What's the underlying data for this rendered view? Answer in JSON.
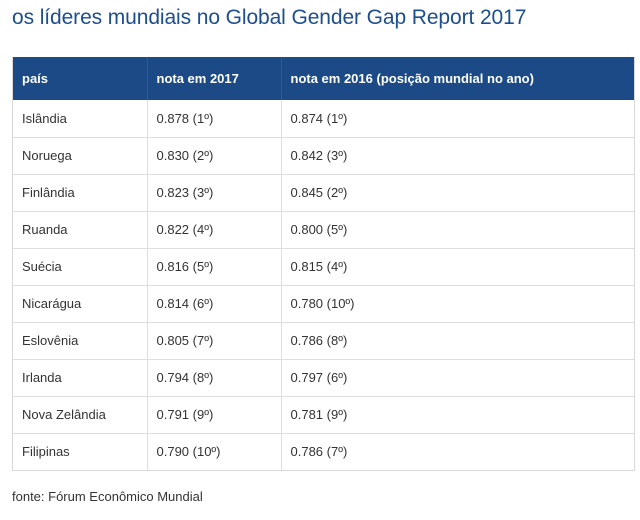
{
  "title": "os líderes mundiais no Global Gender Gap Report 2017",
  "table": {
    "headers": [
      "país",
      "nota em 2017",
      "nota em 2016 (posição mundial no ano)"
    ],
    "rows": [
      [
        "Islândia",
        "0.878 (1º)",
        "0.874 (1º)"
      ],
      [
        "Noruega",
        "0.830 (2º)",
        "0.842 (3º)"
      ],
      [
        "Finlândia",
        "0.823 (3º)",
        "0.845 (2º)"
      ],
      [
        "Ruanda",
        "0.822 (4º)",
        "0.800 (5º)"
      ],
      [
        "Suécia",
        "0.816 (5º)",
        "0.815 (4º)"
      ],
      [
        "Nicarágua",
        "0.814 (6º)",
        "0.780 (10º)"
      ],
      [
        "Eslovênia",
        "0.805 (7º)",
        "0.786 (8º)"
      ],
      [
        "Irlanda",
        "0.794 (8º)",
        "0.797 (6º)"
      ],
      [
        "Nova Zelândia",
        "0.791 (9º)",
        "0.781 (9º)"
      ],
      [
        "Filipinas",
        "0.790 (10º)",
        "0.786 (7º)"
      ]
    ]
  },
  "source": "fonte: Fórum Econômico Mundial",
  "colors": {
    "title": "#1d4e8f",
    "header_bg": "#1b4a86",
    "header_text": "#ffffff",
    "cell_text": "#333333"
  }
}
